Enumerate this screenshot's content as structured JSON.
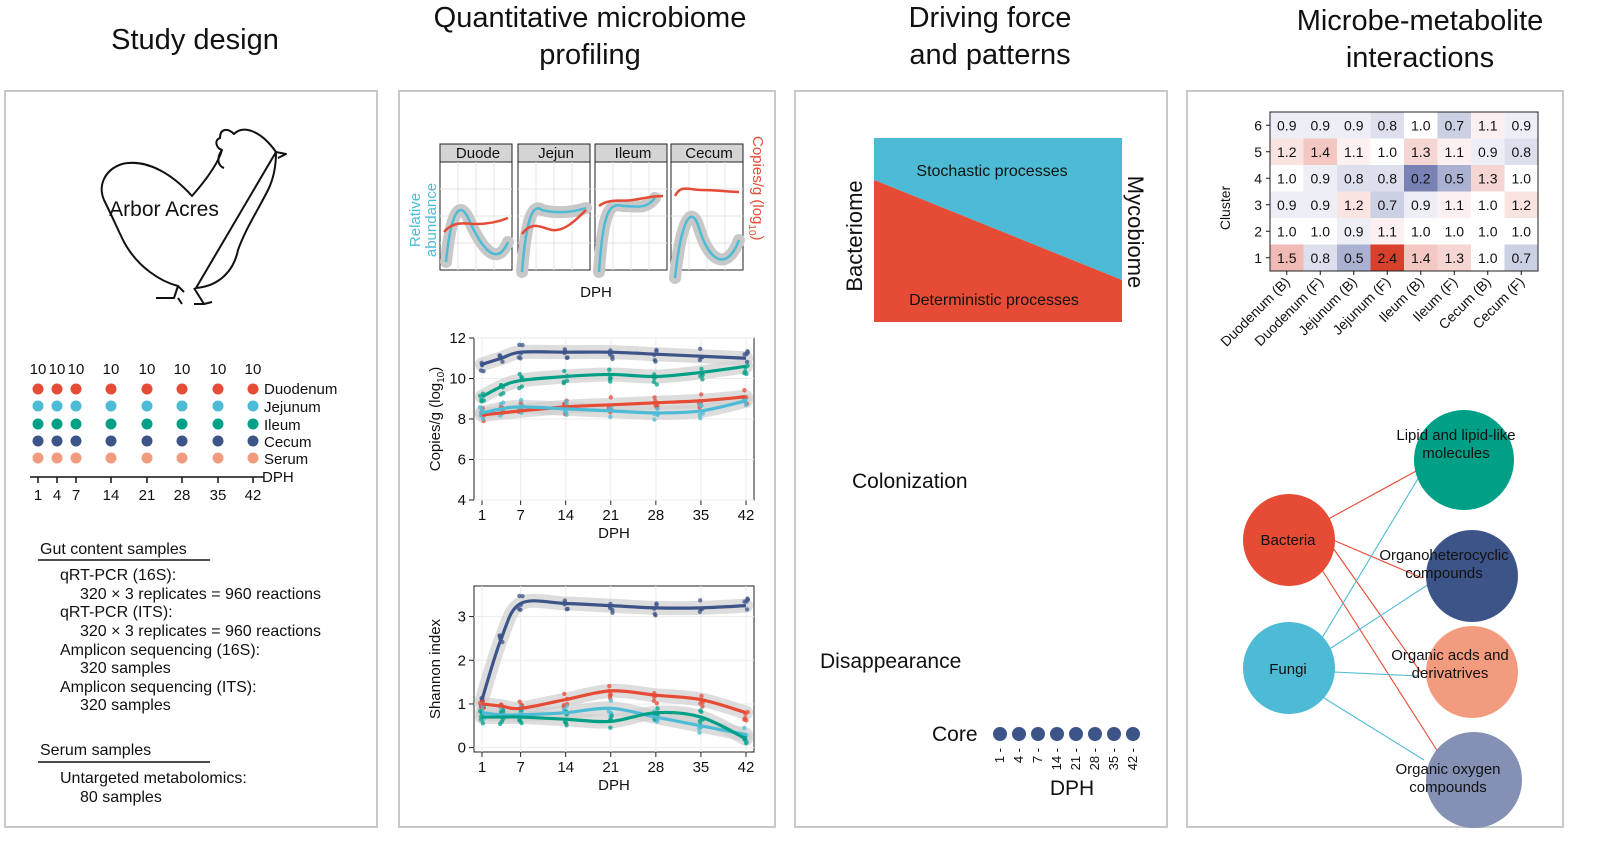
{
  "titles": {
    "study": "Study design",
    "qmp_line1": "Quantitative microbiome",
    "qmp_line2": "profiling",
    "drive_line1": "Driving force",
    "drive_line2": "and patterns",
    "mm_line1": "Microbe-metabolite",
    "mm_line2": "interactions"
  },
  "colors": {
    "duodenum": "#E64B35",
    "jejunum": "#4DBBD5",
    "ileum": "#00A087",
    "cecum": "#3C5488",
    "serum": "#F39B7F",
    "oxygen": "#8491B4",
    "panel_border": "#c8c8c8"
  },
  "study": {
    "breed_label": "Arbor Acres",
    "sample_counts": [
      "10",
      "10",
      "10",
      "10",
      "10",
      "10",
      "10",
      "10"
    ],
    "legend": [
      "Duodenum",
      "Jejunum",
      "Ileum",
      "Cecum",
      "Serum"
    ],
    "dph_label": "DPH",
    "days": [
      "1",
      "4",
      "7",
      "14",
      "21",
      "28",
      "35",
      "42"
    ],
    "gut_header": "Gut content samples",
    "gut_lines": [
      "qRT-PCR (16S):",
      "320 × 3 replicates = 960 reactions",
      "qRT-PCR (ITS):",
      "320 × 3 replicates = 960 reactions",
      "Amplicon sequencing (16S):",
      "320 samples",
      "Amplicon sequencing (ITS):",
      "320 samples"
    ],
    "serum_header": "Serum samples",
    "serum_lines": [
      "Untargeted metabolomics:",
      "80 samples"
    ]
  },
  "qmp": {
    "facets": [
      "Duode",
      "Jejun",
      "Ileum",
      "Cecum"
    ],
    "left_axis_line1": "Relative",
    "left_axis_line2": "abundance",
    "right_axis": "Copies/g (log",
    "right_axis_sub": "10",
    "right_axis_end": ")",
    "facet_xlabel": "DPH"
  },
  "chart_data": [
    {
      "type": "line",
      "title": "",
      "xlabel": "DPH",
      "ylabel": "Copies/g (log",
      "ylabel_sub": "10",
      "ylabel_end": ")",
      "x": [
        1,
        4,
        7,
        14,
        21,
        28,
        35,
        42
      ],
      "xticks": [
        "1",
        "7",
        "14",
        "21",
        "28",
        "35",
        "42"
      ],
      "yticks": [
        "4",
        "6",
        "8",
        "10",
        "12"
      ],
      "ylim": [
        4,
        12
      ],
      "grid": true,
      "series": [
        {
          "name": "Cecum",
          "color": "#3C5488",
          "values": [
            10.7,
            11.0,
            11.3,
            11.3,
            11.3,
            11.2,
            11.1,
            11.0
          ]
        },
        {
          "name": "Ileum",
          "color": "#00A087",
          "values": [
            9.1,
            9.6,
            9.9,
            10.1,
            10.2,
            10.1,
            10.3,
            10.6
          ]
        },
        {
          "name": "Duodenum",
          "color": "#E64B35",
          "values": [
            8.2,
            8.3,
            8.4,
            8.6,
            8.7,
            8.8,
            8.9,
            9.1
          ]
        },
        {
          "name": "Jejunum",
          "color": "#4DBBD5",
          "values": [
            8.3,
            8.5,
            8.6,
            8.5,
            8.4,
            8.3,
            8.4,
            8.9
          ]
        }
      ]
    },
    {
      "type": "line",
      "title": "",
      "xlabel": "DPH",
      "ylabel": "Shannon index",
      "x": [
        1,
        4,
        7,
        14,
        21,
        28,
        35,
        42
      ],
      "xticks": [
        "1",
        "7",
        "14",
        "21",
        "28",
        "35",
        "42"
      ],
      "yticks": [
        "0",
        "1",
        "2",
        "3"
      ],
      "ylim": [
        -0.1,
        3.7
      ],
      "grid": true,
      "series": [
        {
          "name": "Cecum",
          "color": "#3C5488",
          "values": [
            1.1,
            2.5,
            3.3,
            3.3,
            3.25,
            3.2,
            3.2,
            3.25
          ]
        },
        {
          "name": "Duodenum",
          "color": "#E64B35",
          "values": [
            1.0,
            0.95,
            0.9,
            1.1,
            1.3,
            1.2,
            1.1,
            0.8
          ]
        },
        {
          "name": "Jejunum",
          "color": "#4DBBD5",
          "values": [
            0.8,
            0.75,
            0.75,
            0.8,
            0.9,
            0.7,
            0.5,
            0.3
          ]
        },
        {
          "name": "Ileum",
          "color": "#00A087",
          "values": [
            0.7,
            0.7,
            0.7,
            0.65,
            0.6,
            0.8,
            0.7,
            0.2
          ]
        }
      ]
    },
    {
      "type": "heatmap",
      "title": "",
      "xlabel": "",
      "ylabel": "Cluster",
      "columns": [
        "Duodenum (B)",
        "Duodenum (F)",
        "Jejunum (B)",
        "Jejunum (F)",
        "Ileum (B)",
        "Ileum (F)",
        "Cecum (B)",
        "Cecum (F)"
      ],
      "rows": [
        "6",
        "5",
        "4",
        "3",
        "2",
        "1"
      ],
      "values": [
        [
          0.9,
          0.9,
          0.9,
          0.8,
          1.0,
          0.7,
          1.1,
          0.9
        ],
        [
          1.2,
          1.4,
          1.1,
          1.0,
          1.3,
          1.1,
          0.9,
          0.8
        ],
        [
          1.0,
          0.9,
          0.8,
          0.8,
          0.2,
          0.5,
          1.3,
          1.0
        ],
        [
          0.9,
          0.9,
          1.2,
          0.7,
          0.9,
          1.1,
          1.0,
          1.2
        ],
        [
          1.0,
          1.0,
          0.9,
          1.1,
          1.0,
          1.0,
          1.0,
          1.0
        ],
        [
          1.5,
          0.8,
          0.5,
          2.4,
          1.4,
          1.3,
          1.0,
          0.7
        ]
      ],
      "labels": [
        [
          "0.9",
          "0.9",
          "0.9",
          "0.8",
          "1.0",
          "0.7",
          "1.1",
          "0.9"
        ],
        [
          "1.2",
          "1.4",
          "1.1",
          "1.0",
          "1.3",
          "1.1",
          "0.9",
          "0.8"
        ],
        [
          "1.0",
          "0.9",
          "0.8",
          "0.8",
          "0.2",
          "0.5",
          "1.3",
          "1.0"
        ],
        [
          "0.9",
          "0.9",
          "1.2",
          "0.7",
          "0.9",
          "1.1",
          "1.0",
          "1.2"
        ],
        [
          "1.0",
          "1.0",
          "0.9",
          "1.1",
          "1.0",
          "1.0",
          "1.0",
          "1.0"
        ],
        [
          "1.5",
          "0.8",
          "0.5",
          "2.4",
          "1.4",
          "1.3",
          "1.0",
          "0.7"
        ]
      ]
    }
  ],
  "driving": {
    "stochastic": "Stochastic processes",
    "deterministic": "Deterministic processes",
    "bacteriome": "Bacteriome",
    "mycobiome": "Mycobiome",
    "colonization": "Colonization",
    "disappearance": "Disappearance",
    "core": "Core",
    "core_days": [
      "1",
      "4",
      "7",
      "14",
      "21",
      "28",
      "35",
      "42"
    ],
    "dph": "DPH"
  },
  "network": {
    "bacteria": "Bacteria",
    "fungi": "Fungi",
    "lipid_line1": "Lipid and lipid-like",
    "lipid_line2": "molecules",
    "hetero_line1": "Organoheterocyclic",
    "hetero_line2": "compounds",
    "acids_line1": "Organic acds and",
    "acids_line2": "derivatrives",
    "oxygen_line1": "Organic oxygen",
    "oxygen_line2": "compounds"
  }
}
